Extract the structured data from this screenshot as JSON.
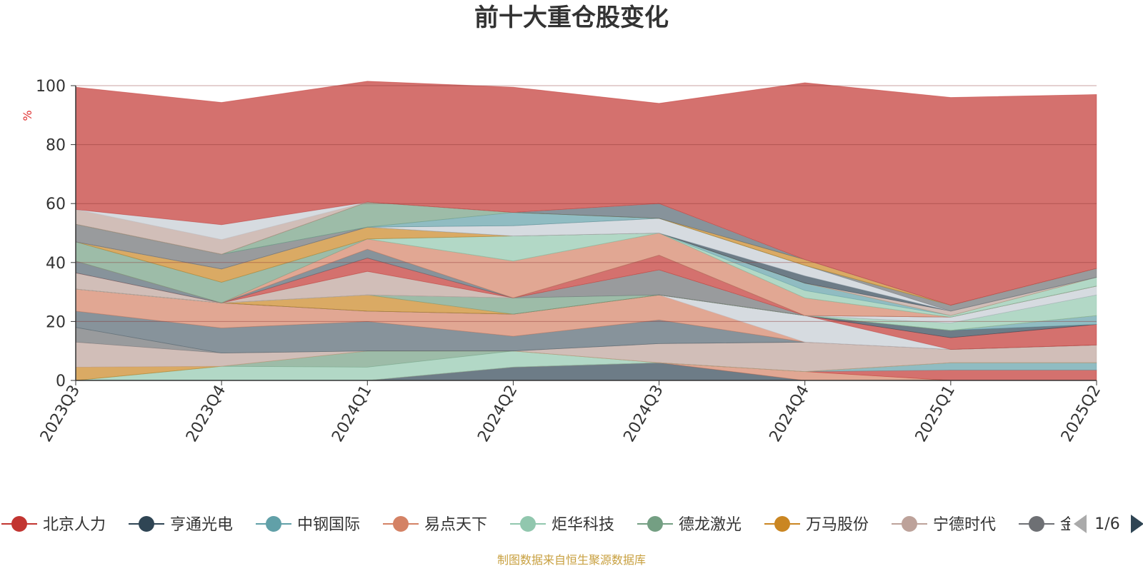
{
  "chart_data": {
    "type": "area",
    "title": "前十大重仓股变化",
    "ylabel": "%",
    "ylim": [
      0,
      100
    ],
    "yticks": [
      "0",
      "20",
      "40",
      "60",
      "80",
      "100"
    ],
    "categories": [
      "2023Q3",
      "2023Q4",
      "2024Q1",
      "2024Q2",
      "2024Q3",
      "2024Q4",
      "2025Q1",
      "2025Q2"
    ],
    "stacked": true,
    "grid": true,
    "legend_position": "bottom",
    "series": [
      {
        "name": "",
        "color": "#2f4554",
        "values": [
          0,
          0,
          0,
          4.5,
          6,
          0,
          0,
          0
        ]
      },
      {
        "name": "",
        "color": "#d48265",
        "values": [
          0,
          0,
          0,
          0,
          0,
          3,
          0,
          0
        ]
      },
      {
        "name": "",
        "color": "#c23531",
        "values": [
          0,
          0,
          0,
          0,
          0,
          0,
          3.5,
          3.5
        ]
      },
      {
        "name": "",
        "color": "#61a0a8",
        "values": [
          0,
          0,
          0,
          0,
          0,
          0,
          2.5,
          2.5
        ]
      },
      {
        "name": "",
        "color": "#91c7ae",
        "values": [
          0,
          4.8,
          4.5,
          5.5,
          0,
          0,
          0,
          0
        ]
      },
      {
        "name": "",
        "color": "#749f83",
        "values": [
          0,
          0,
          5.5,
          0,
          0,
          0,
          0,
          0
        ]
      },
      {
        "name": "",
        "color": "#ca8622",
        "values": [
          4.5,
          0,
          0,
          0,
          0,
          0,
          0,
          0
        ]
      },
      {
        "name": "",
        "color": "#bda29a",
        "values": [
          8.5,
          4.5,
          0,
          0,
          6.5,
          10,
          4.5,
          6
        ]
      },
      {
        "name": "",
        "color": "#6e7074",
        "values": [
          5,
          0,
          0,
          0,
          0,
          0,
          0,
          0
        ]
      },
      {
        "name": "",
        "color": "#546570",
        "values": [
          5.5,
          8.5,
          10,
          5,
          8,
          0,
          0,
          0
        ]
      },
      {
        "name": "",
        "color": "#d48265",
        "values": [
          7.5,
          8.5,
          3.5,
          7.5,
          8.5,
          0,
          0,
          0
        ]
      },
      {
        "name": "",
        "color": "#c4ccd3",
        "values": [
          0,
          0,
          0,
          0,
          0,
          9,
          0,
          0
        ]
      },
      {
        "name": "",
        "color": "#c23531",
        "values": [
          0,
          0,
          0,
          0,
          0,
          0,
          4,
          7
        ]
      },
      {
        "name": "",
        "color": "#2f4554",
        "values": [
          0,
          0,
          0,
          0,
          0,
          0,
          2.5,
          0
        ]
      },
      {
        "name": "",
        "color": "#61a0a8",
        "values": [
          0,
          0,
          0,
          0,
          0,
          0,
          0,
          3
        ]
      },
      {
        "name": "",
        "color": "#ca8622",
        "values": [
          0,
          0,
          5.5,
          0,
          0,
          0,
          0,
          0
        ]
      },
      {
        "name": "",
        "color": "#749f83",
        "values": [
          0,
          0,
          0,
          5.5,
          0,
          0,
          0,
          0
        ]
      },
      {
        "name": "",
        "color": "#91c7ae",
        "values": [
          0,
          0,
          0,
          0,
          0,
          0,
          2.5,
          7
        ]
      },
      {
        "name": "",
        "color": "#6e7074",
        "values": [
          0,
          0,
          0,
          0,
          8.5,
          0,
          0,
          0
        ]
      },
      {
        "name": "",
        "color": "#c4ccd3",
        "values": [
          0,
          0,
          0,
          0,
          0,
          0,
          2,
          3
        ]
      },
      {
        "name": "",
        "color": "#bda29a",
        "values": [
          5.5,
          0,
          8,
          0,
          0,
          0,
          0,
          0
        ]
      },
      {
        "name": "",
        "color": "#c23531",
        "values": [
          0,
          0,
          4.5,
          0,
          5,
          0,
          0,
          0
        ]
      },
      {
        "name": "",
        "color": "#546570",
        "values": [
          4,
          0,
          3,
          0,
          0,
          0,
          0,
          0
        ]
      },
      {
        "name": "",
        "color": "#d48265",
        "values": [
          0,
          0,
          3.5,
          12.5,
          7.5,
          6,
          0,
          0
        ]
      },
      {
        "name": "",
        "color": "#749f83",
        "values": [
          6.5,
          7,
          0,
          0,
          0,
          0,
          0,
          0
        ]
      },
      {
        "name": "",
        "color": "#91c7ae",
        "values": [
          0,
          0,
          0,
          8.5,
          0,
          2.5,
          0.5,
          3
        ]
      },
      {
        "name": "",
        "color": "#61a0a8",
        "values": [
          0,
          0,
          0,
          0,
          0,
          2.5,
          0,
          0
        ]
      },
      {
        "name": "",
        "color": "#ca8622",
        "values": [
          0,
          4.5,
          4,
          0,
          0,
          0,
          0,
          0
        ]
      },
      {
        "name": "",
        "color": "#bda29a",
        "values": [
          0,
          0,
          0,
          0,
          0,
          0,
          1.5,
          0
        ]
      },
      {
        "name": "",
        "color": "#2f4554",
        "values": [
          0,
          0,
          0,
          0,
          0,
          2.5,
          0,
          0
        ]
      },
      {
        "name": "",
        "color": "#c4ccd3",
        "values": [
          0,
          0,
          0,
          3.5,
          5,
          3.5,
          0,
          0
        ]
      },
      {
        "name": "",
        "color": "#6e7074",
        "values": [
          6,
          5,
          0,
          0,
          0,
          0,
          2,
          3
        ]
      },
      {
        "name": "",
        "color": "#61a0a8",
        "values": [
          0,
          0,
          0,
          4.5,
          0,
          0,
          0,
          0
        ]
      },
      {
        "name": "",
        "color": "#749f83",
        "values": [
          0,
          0,
          8.5,
          0,
          0,
          0,
          0,
          0
        ]
      },
      {
        "name": "",
        "color": "#ca8622",
        "values": [
          0,
          0,
          0,
          0,
          0,
          2,
          0,
          0
        ]
      },
      {
        "name": "",
        "color": "#546570",
        "values": [
          0,
          0,
          0,
          0,
          5,
          0,
          0,
          0
        ]
      },
      {
        "name": "",
        "color": "#bda29a",
        "values": [
          5,
          5,
          0,
          0,
          0,
          0,
          0,
          0
        ]
      },
      {
        "name": "",
        "color": "#c4ccd3",
        "values": [
          0,
          5,
          0,
          0,
          0,
          0,
          0,
          0
        ]
      },
      {
        "name": "北京人力",
        "color": "#c23531",
        "values": [
          41.5,
          41.5,
          41,
          42.5,
          34,
          60,
          70.5,
          59
        ]
      }
    ],
    "legend": [
      {
        "name": "北京人力",
        "color": "#c23531"
      },
      {
        "name": "亨通光电",
        "color": "#2f4554"
      },
      {
        "name": "中钢国际",
        "color": "#61a0a8"
      },
      {
        "name": "易点天下",
        "color": "#d48265"
      },
      {
        "name": "炬华科技",
        "color": "#91c7ae"
      },
      {
        "name": "德龙激光",
        "color": "#749f83"
      },
      {
        "name": "万马股份",
        "color": "#ca8622"
      },
      {
        "name": "宁德时代",
        "color": "#bda29a"
      },
      {
        "name": "金",
        "color": "#6e7074"
      }
    ],
    "legend_page": "1/6",
    "source_note": "制图数据来自恒生聚源数据库"
  }
}
